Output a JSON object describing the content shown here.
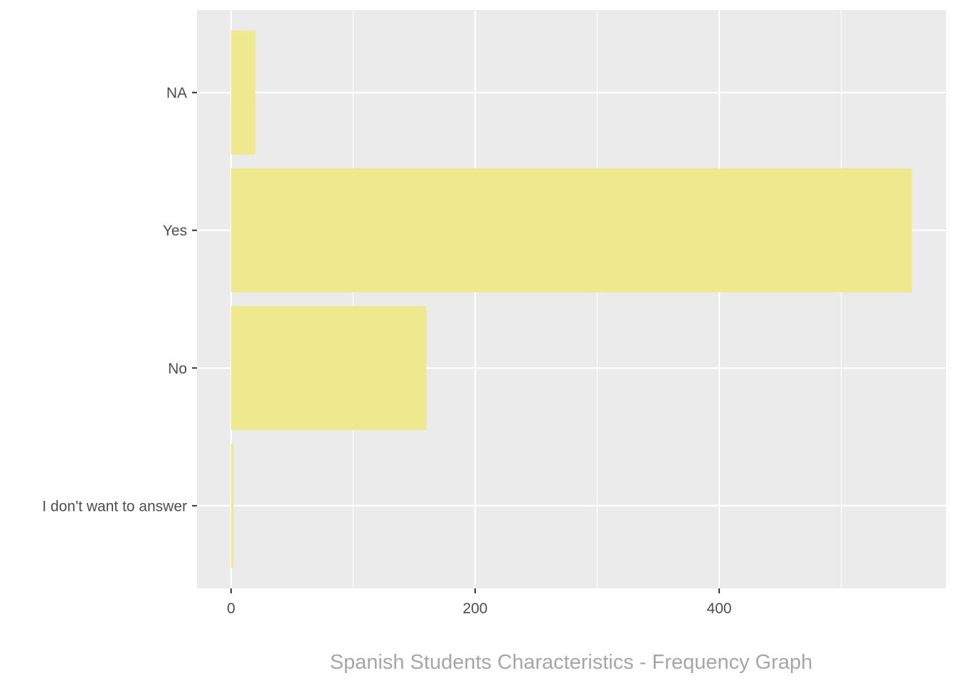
{
  "chart_data": {
    "type": "bar",
    "orientation": "horizontal",
    "categories": [
      "I don't want to answer",
      "No",
      "Yes",
      "NA"
    ],
    "values": [
      2,
      160,
      558,
      20
    ],
    "title": "",
    "caption": "Spanish Students Characteristics - Frequency Graph",
    "xlabel": "",
    "ylabel": "",
    "xlim": [
      -27.9,
      585.9
    ],
    "x_ticks": [
      0,
      200,
      400
    ],
    "x_minor_ticks": [
      100,
      300,
      500
    ],
    "grid": true,
    "legend": "none",
    "colors": {
      "bar": "#eee88f",
      "panel": "#ebebeb",
      "grid": "#ffffff",
      "tick_text": "#4d4d4d",
      "caption_text": "#a6a6a6"
    }
  }
}
